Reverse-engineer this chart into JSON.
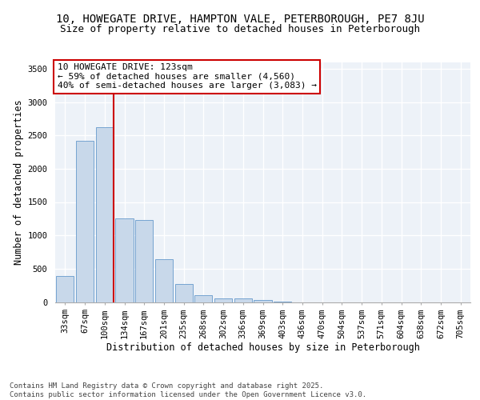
{
  "title_line1": "10, HOWEGATE DRIVE, HAMPTON VALE, PETERBOROUGH, PE7 8JU",
  "title_line2": "Size of property relative to detached houses in Peterborough",
  "xlabel": "Distribution of detached houses by size in Peterborough",
  "ylabel": "Number of detached properties",
  "categories": [
    "33sqm",
    "67sqm",
    "100sqm",
    "134sqm",
    "167sqm",
    "201sqm",
    "235sqm",
    "268sqm",
    "302sqm",
    "336sqm",
    "369sqm",
    "403sqm",
    "436sqm",
    "470sqm",
    "504sqm",
    "537sqm",
    "571sqm",
    "604sqm",
    "638sqm",
    "672sqm",
    "705sqm"
  ],
  "values": [
    390,
    2420,
    2620,
    1250,
    1230,
    640,
    270,
    100,
    55,
    50,
    30,
    10,
    0,
    0,
    0,
    0,
    0,
    0,
    0,
    0,
    0
  ],
  "bar_color": "#c8d8ea",
  "bar_edge_color": "#6699cc",
  "vline_color": "#cc0000",
  "annotation_text": "10 HOWEGATE DRIVE: 123sqm\n← 59% of detached houses are smaller (4,560)\n40% of semi-detached houses are larger (3,083) →",
  "annotation_box_facecolor": "#ffffff",
  "annotation_box_edgecolor": "#cc0000",
  "ylim": [
    0,
    3600
  ],
  "yticks": [
    0,
    500,
    1000,
    1500,
    2000,
    2500,
    3000,
    3500
  ],
  "bg_color": "#edf2f8",
  "grid_color": "#ffffff",
  "footer_text": "Contains HM Land Registry data © Crown copyright and database right 2025.\nContains public sector information licensed under the Open Government Licence v3.0.",
  "title_fontsize": 10,
  "subtitle_fontsize": 9,
  "axis_label_fontsize": 8.5,
  "tick_fontsize": 7.5,
  "annotation_fontsize": 8,
  "footer_fontsize": 6.5
}
